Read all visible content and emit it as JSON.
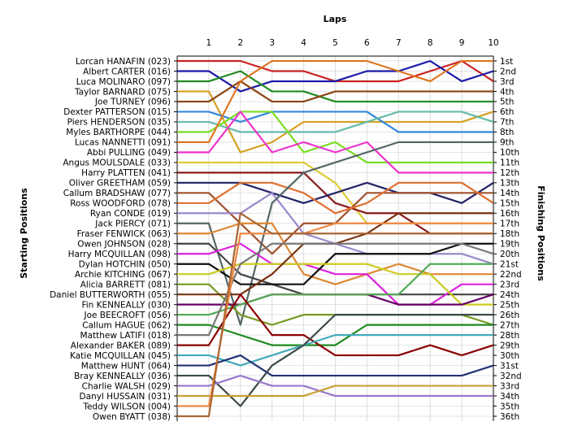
{
  "chart_data": {
    "type": "line",
    "title": "",
    "x_axis_title": "Laps",
    "left_axis_title": "Starting Positions",
    "right_axis_title": "Finishing Positions",
    "laps": [
      1,
      2,
      3,
      4,
      5,
      6,
      7,
      8,
      9,
      10
    ],
    "finish_labels": [
      "1st",
      "2nd",
      "3rd",
      "4th",
      "5th",
      "6th",
      "7th",
      "8th",
      "9th",
      "10th",
      "11th",
      "12th",
      "13th",
      "14th",
      "15th",
      "16th",
      "17th",
      "18th",
      "19th",
      "20th",
      "21st",
      "22nd",
      "23rd",
      "24th",
      "25th",
      "26th",
      "27th",
      "28th",
      "29th",
      "30th",
      "31st",
      "32nd",
      "33rd",
      "34th",
      "35th",
      "36th"
    ],
    "grid": true,
    "series": [
      {
        "name": "Lorcan HANAFIN (023)",
        "color": "#cc2222",
        "positions": [
          1,
          1,
          2,
          2,
          3,
          3,
          3,
          2,
          1,
          3
        ]
      },
      {
        "name": "Albert CARTER (016)",
        "color": "#1a1aaa",
        "positions": [
          2,
          4,
          3,
          3,
          3,
          2,
          2,
          1,
          3,
          2
        ]
      },
      {
        "name": "Luca MOLINARO (097)",
        "color": "#228b22",
        "positions": [
          3,
          2,
          4,
          4,
          5,
          5,
          5,
          5,
          5,
          5
        ]
      },
      {
        "name": "Taylor BARNARD (075)",
        "color": "#d4a020",
        "positions": [
          4,
          10,
          9,
          7,
          7,
          7,
          7,
          7,
          7,
          6
        ]
      },
      {
        "name": "Joe TURNEY (096)",
        "color": "#8b4513",
        "positions": [
          5,
          3,
          5,
          5,
          4,
          4,
          4,
          4,
          4,
          4
        ]
      },
      {
        "name": "Dexter PATTERSON (015)",
        "color": "#3388dd",
        "positions": [
          6,
          7,
          6,
          6,
          6,
          6,
          8,
          8,
          8,
          8
        ]
      },
      {
        "name": "Piers HENDERSON (035)",
        "color": "#66bbaa",
        "positions": [
          7,
          8,
          8,
          8,
          8,
          7,
          6,
          6,
          6,
          7
        ]
      },
      {
        "name": "Myles BARTHORPE (044)",
        "color": "#77dd22",
        "positions": [
          8,
          6,
          6,
          10,
          9,
          11,
          11,
          11,
          11,
          11
        ]
      },
      {
        "name": "Lucas NANNETTI (091)",
        "color": "#dd7722",
        "positions": [
          9,
          3,
          1,
          1,
          1,
          1,
          2,
          3,
          1,
          1
        ]
      },
      {
        "name": "Abbi PULLING (049)",
        "color": "#ee33cc",
        "positions": [
          10,
          6,
          10,
          9,
          10,
          9,
          12,
          12,
          12,
          12
        ]
      },
      {
        "name": "Angus MOULSDALE (033)",
        "color": "#ddcc33",
        "positions": [
          11,
          11,
          11,
          11,
          13,
          17,
          17,
          17,
          17,
          17
        ]
      },
      {
        "name": "Harry PLATTEN (041)",
        "color": "#8b1a1a",
        "positions": [
          12,
          12,
          12,
          12,
          15,
          16,
          16,
          18,
          18,
          18
        ]
      },
      {
        "name": "Oliver GREETHAM (059)",
        "color": "#222266",
        "positions": [
          13,
          13,
          14,
          15,
          14,
          13,
          14,
          14,
          15,
          13
        ]
      },
      {
        "name": "Callum BRADSHAW (077)",
        "color": "#a0522d",
        "positions": [
          14,
          17,
          20,
          17,
          17,
          14,
          14,
          14,
          14,
          14
        ]
      },
      {
        "name": "Ross WOODFORD (078)",
        "color": "#e07030",
        "positions": [
          15,
          13,
          13,
          14,
          16,
          15,
          13,
          13,
          13,
          15
        ]
      },
      {
        "name": "Ryan CONDE (019)",
        "color": "#9988cc",
        "positions": [
          16,
          16,
          14,
          18,
          19,
          20,
          20,
          20,
          20,
          21
        ]
      },
      {
        "name": "Jack PIERCY (071)",
        "color": "#556666",
        "positions": [
          17,
          27,
          15,
          12,
          11,
          10,
          9,
          9,
          9,
          9
        ]
      },
      {
        "name": "Fraser FENWICK (063)",
        "color": "#dd8833",
        "positions": [
          18,
          17,
          17,
          22,
          23,
          22,
          21,
          22,
          22,
          22
        ]
      },
      {
        "name": "Owen JOHNSON (028)",
        "color": "#444444",
        "positions": [
          19,
          22,
          23,
          24,
          24,
          24,
          24,
          24,
          24,
          24
        ]
      },
      {
        "name": "Harry MCQUILLAN (098)",
        "color": "#dd22dd",
        "positions": [
          20,
          19,
          21,
          21,
          22,
          22,
          25,
          25,
          23,
          23
        ]
      },
      {
        "name": "Dylan HOTCHIN (050)",
        "color": "#111111",
        "positions": [
          21,
          23,
          23,
          23,
          20,
          20,
          20,
          20,
          19,
          19
        ]
      },
      {
        "name": "Archie KITCHING (067)",
        "color": "#cccc22",
        "positions": [
          22,
          21,
          21,
          21,
          21,
          21,
          22,
          22,
          25,
          25
        ]
      },
      {
        "name": "Alicia BARRETT (081)",
        "color": "#779922",
        "positions": [
          23,
          26,
          27,
          26,
          26,
          26,
          26,
          26,
          26,
          27
        ]
      },
      {
        "name": "Daniel BUTTERWORTH (055)",
        "color": "#773311",
        "positions": [
          24,
          24,
          22,
          19,
          19,
          18,
          16,
          16,
          16,
          16
        ]
      },
      {
        "name": "Fin KENNEALLY (030)",
        "color": "#660066",
        "positions": [
          25,
          25,
          24,
          24,
          24,
          24,
          25,
          25,
          25,
          24
        ]
      },
      {
        "name": "Joe BEECROFT (056)",
        "color": "#55aa55",
        "positions": [
          26,
          25,
          24,
          24,
          24,
          24,
          24,
          21,
          21,
          21
        ]
      },
      {
        "name": "Callum HAGUE (062)",
        "color": "#1f8a1f",
        "positions": [
          27,
          28,
          29,
          29,
          29,
          27,
          27,
          27,
          27,
          27
        ]
      },
      {
        "name": "Matthew LATIFI (018)",
        "color": "#777777",
        "positions": [
          28,
          21,
          19,
          19,
          19,
          19,
          19,
          19,
          19,
          20
        ]
      },
      {
        "name": "Alexander BAKER (089)",
        "color": "#8b0000",
        "positions": [
          29,
          24,
          28,
          28,
          30,
          30,
          30,
          29,
          30,
          29
        ]
      },
      {
        "name": "Katie MCQUILLAN (045)",
        "color": "#44aabb",
        "positions": [
          30,
          31,
          30,
          29,
          28,
          28,
          28,
          28,
          28,
          28
        ]
      },
      {
        "name": "Matthew HUNT (064)",
        "color": "#223377",
        "positions": [
          31,
          30,
          32,
          32,
          32,
          32,
          32,
          32,
          32,
          31
        ]
      },
      {
        "name": "Bray KENNEALLY (036)",
        "color": "#3a4a4a",
        "positions": [
          32,
          35,
          31,
          29,
          26,
          26,
          26,
          26,
          26,
          26
        ]
      },
      {
        "name": "Charlie WALSH (029)",
        "color": "#9977cc",
        "positions": [
          33,
          32,
          33,
          33,
          34,
          34,
          34,
          34,
          34,
          34
        ]
      },
      {
        "name": "Danyl HUSSAIN (031)",
        "color": "#c8a030",
        "positions": [
          34,
          34,
          34,
          34,
          33,
          33,
          33,
          33,
          33,
          33
        ]
      },
      {
        "name": "Teddy WILSON (004)",
        "color": "#ee8844",
        "positions": [
          35,
          18,
          18,
          18,
          17,
          17,
          17,
          17,
          17,
          17
        ]
      },
      {
        "name": "Owen BYATT (038)",
        "color": "#aa6633",
        "positions": [
          36,
          16,
          18,
          18,
          18,
          18,
          18,
          18,
          18,
          18
        ]
      }
    ]
  }
}
